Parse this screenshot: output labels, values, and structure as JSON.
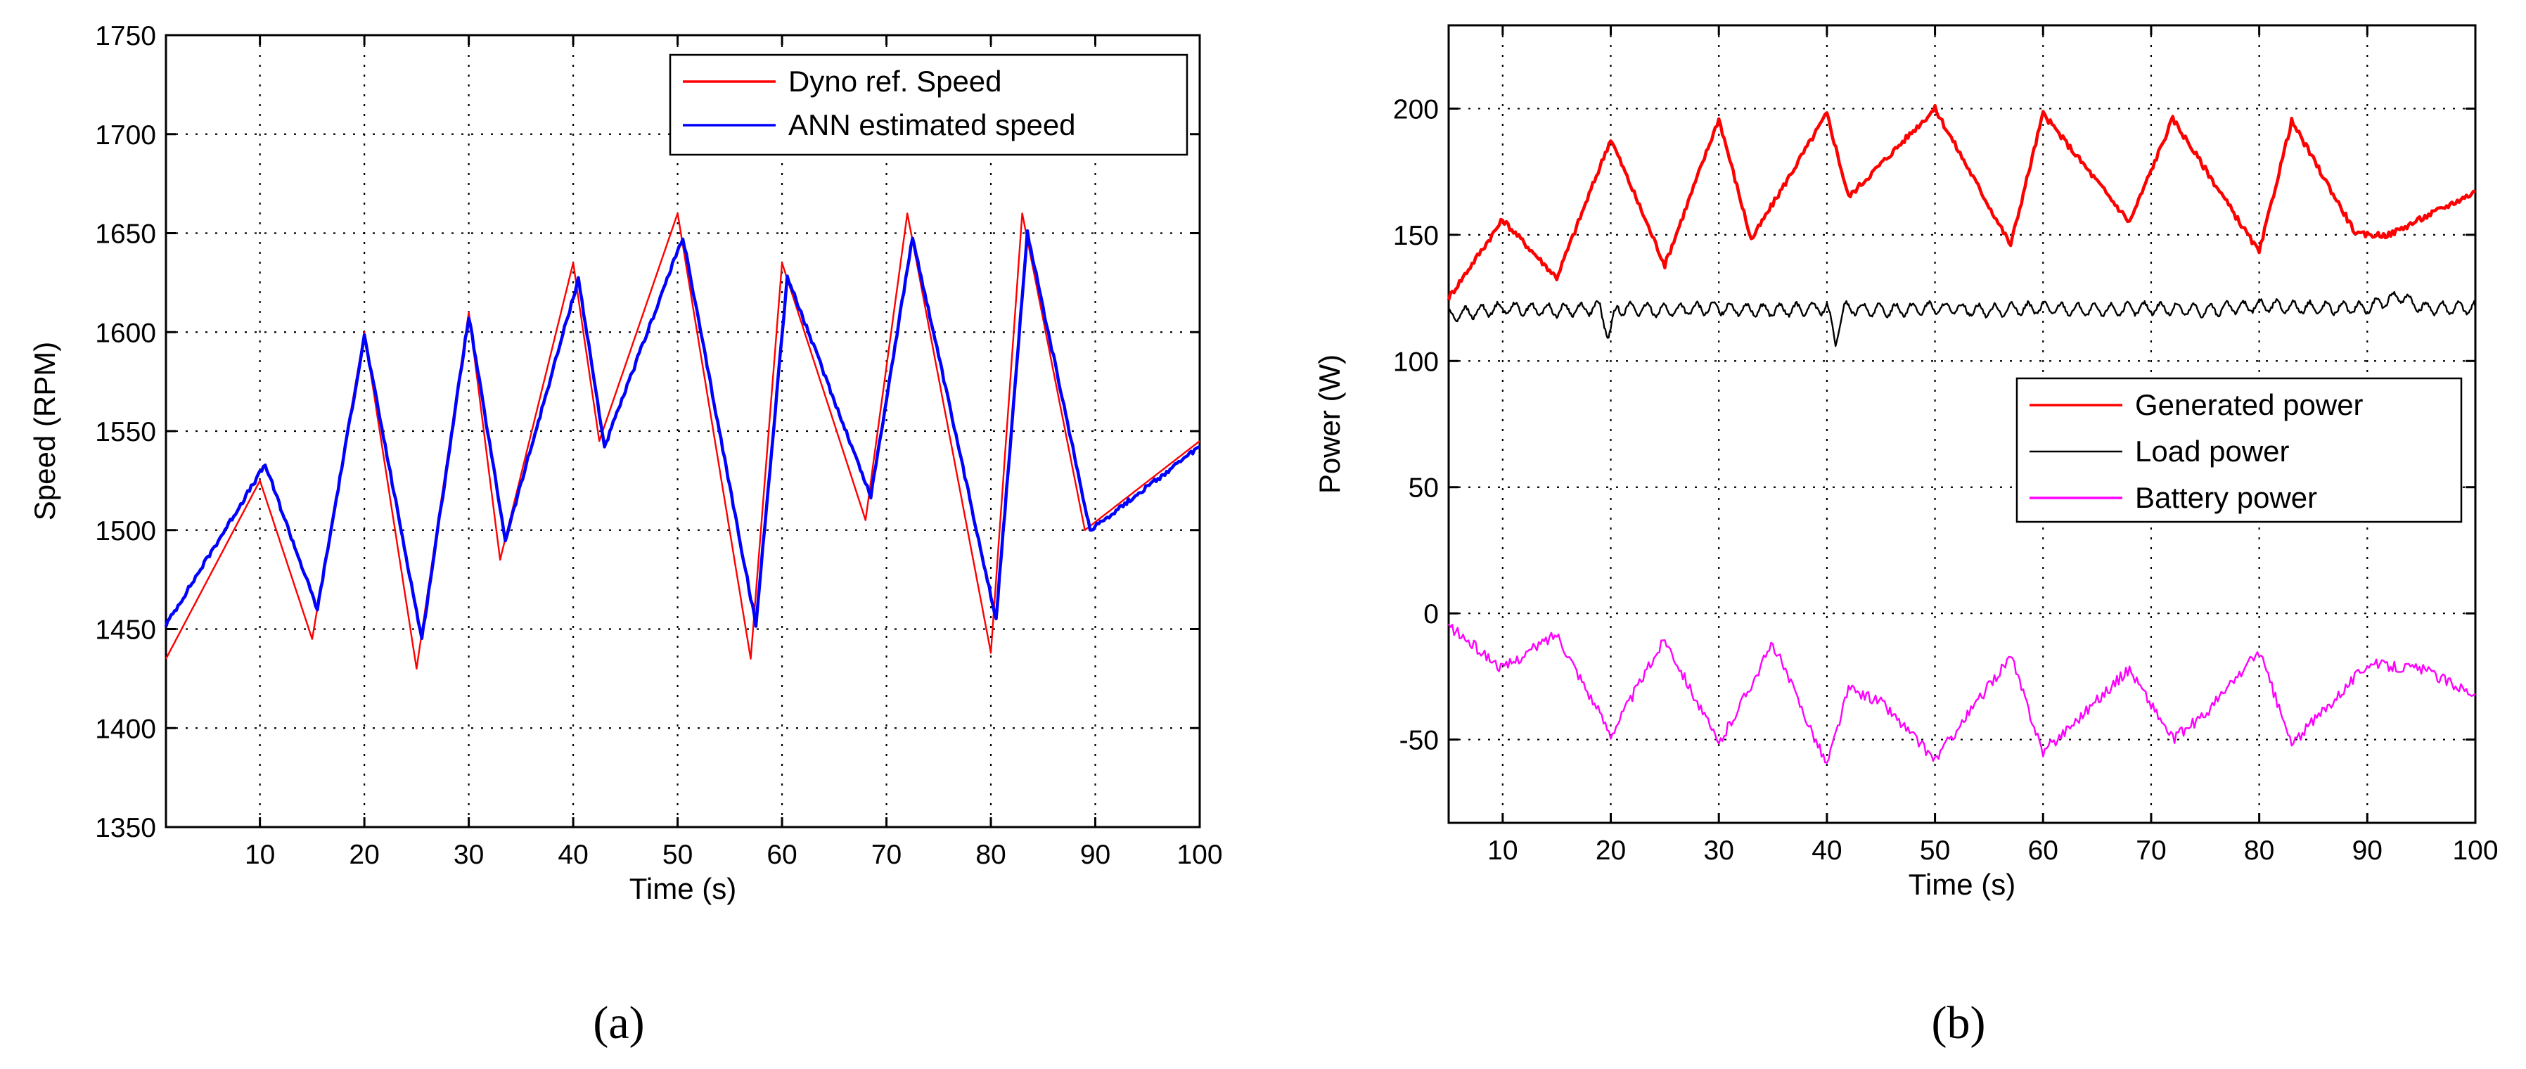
{
  "chart_data": [
    {
      "type": "line",
      "caption": "(a)",
      "xlabel": "Time (s)",
      "ylabel": "Speed (RPM)",
      "xlim": [
        1,
        100
      ],
      "ylim": [
        1350,
        1750
      ],
      "xticks": [
        10,
        20,
        30,
        40,
        50,
        60,
        70,
        80,
        90,
        100
      ],
      "yticks": [
        1350,
        1400,
        1450,
        1500,
        1550,
        1600,
        1650,
        1700,
        1750
      ],
      "grid": true,
      "legend_position": "top-right",
      "series": [
        {
          "name": "Dyno ref. Speed",
          "color": "#ff0000",
          "x": [
            1,
            10,
            15,
            20,
            25,
            30,
            33,
            40,
            42.5,
            50,
            57,
            60,
            68,
            72,
            80,
            83,
            89,
            100
          ],
          "values": [
            1435,
            1525,
            1445,
            1600,
            1430,
            1610,
            1485,
            1635,
            1545,
            1660,
            1435,
            1635,
            1505,
            1660,
            1438,
            1660,
            1500,
            1545
          ]
        },
        {
          "name": "ANN estimated speed",
          "color": "#0000ff",
          "x": [
            1,
            10.5,
            15.5,
            20,
            25.5,
            30,
            33.5,
            40.5,
            43,
            50.5,
            57.5,
            60.5,
            68.5,
            72.5,
            80.5,
            83.5,
            89.5,
            100
          ],
          "values": [
            1452,
            1533,
            1460,
            1598,
            1445,
            1608,
            1495,
            1627,
            1542,
            1648,
            1452,
            1628,
            1517,
            1648,
            1455,
            1650,
            1500,
            1542
          ]
        }
      ]
    },
    {
      "type": "line",
      "caption": "(b)",
      "xlabel": "Time (s)",
      "ylabel": "Power (W)",
      "xlim": [
        5,
        100
      ],
      "ylim": [
        -83,
        233
      ],
      "xticks": [
        10,
        20,
        30,
        40,
        50,
        60,
        70,
        80,
        90,
        100
      ],
      "yticks": [
        -50,
        0,
        50,
        100,
        150,
        200
      ],
      "grid": true,
      "legend_position": "center-right",
      "series": [
        {
          "name": "Generated power",
          "color": "#ff0000",
          "x": [
            5,
            10,
            15,
            20,
            25,
            30,
            33,
            40,
            42,
            50,
            57,
            60,
            68,
            72,
            80,
            83,
            89,
            92,
            100
          ],
          "values": [
            125,
            156,
            133,
            188,
            138,
            196,
            148,
            198,
            165,
            200,
            146,
            198,
            155,
            196,
            143,
            195,
            150,
            150,
            167
          ]
        },
        {
          "name": "Load power",
          "color": "#000000",
          "x": [
            5,
            10,
            15,
            19,
            19.8,
            20.6,
            25,
            30,
            35,
            40,
            40.8,
            41.6,
            45,
            50,
            55,
            60,
            65,
            70,
            75,
            80,
            85,
            90,
            93,
            95,
            100
          ],
          "values": [
            118,
            121,
            120,
            121,
            110,
            121,
            120,
            121,
            120,
            121,
            108,
            121,
            120,
            121,
            120,
            121,
            120,
            121,
            120,
            122,
            121,
            121,
            126,
            121,
            121
          ]
        },
        {
          "name": "Battery power",
          "color": "#ff00ff",
          "x": [
            5,
            10,
            15,
            20,
            25,
            30,
            35,
            40,
            42,
            45,
            50,
            57,
            60,
            68,
            72,
            75,
            80,
            83,
            90,
            95,
            100
          ],
          "values": [
            -5,
            -22,
            -8,
            -48,
            -10,
            -52,
            -12,
            -60,
            -30,
            -35,
            -58,
            -17,
            -55,
            -22,
            -50,
            -40,
            -15,
            -52,
            -20,
            -22,
            -32
          ]
        }
      ]
    }
  ]
}
